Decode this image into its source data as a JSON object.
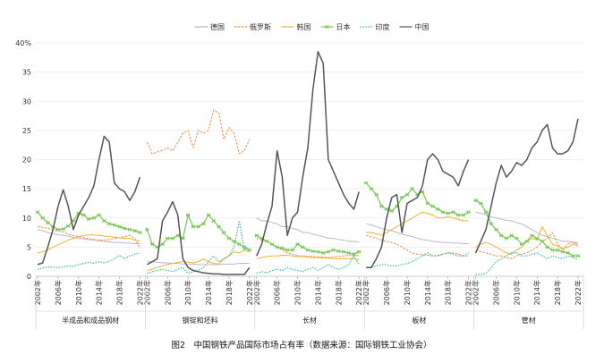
{
  "chart_data": {
    "type": "line",
    "caption": "图2　中国钢铁产品国际市场占有率（数据来源：国际钢铁工业协会）",
    "y_axis": {
      "min": 0,
      "max": 40,
      "ticks": [
        "0",
        "5",
        "10",
        "15",
        "20",
        "25",
        "30",
        "35",
        "40%"
      ]
    },
    "x_tick_labels": [
      "2002年",
      "2006年",
      "2010年",
      "2014年",
      "2018年",
      "2022年"
    ],
    "x_years": [
      2002,
      2003,
      2004,
      2005,
      2006,
      2007,
      2008,
      2009,
      2010,
      2011,
      2012,
      2013,
      2014,
      2015,
      2016,
      2017,
      2018,
      2019,
      2020,
      2021,
      2022
    ],
    "legend": [
      {
        "name": "德国",
        "color": "#b4aed6",
        "dash": "",
        "marker": ""
      },
      {
        "name": "俄罗斯",
        "color": "#f08a4b",
        "dash": "",
        "marker": ""
      },
      {
        "name": "韩国",
        "color": "#f2b229",
        "dash": "",
        "marker": ""
      },
      {
        "name": "日本",
        "color": "#78c653",
        "dash": "",
        "marker": "star"
      },
      {
        "name": "印度",
        "color": "#33c0a8",
        "dash": "",
        "marker": ""
      },
      {
        "name": "中国",
        "color": "#555555",
        "dash": "",
        "marker": ""
      }
    ],
    "panels": [
      {
        "category": "半成品和成品钢材",
        "series": [
          {
            "name": "德国",
            "values": [
              8,
              7.8,
              7.5,
              7.3,
              7.1,
              7,
              6.9,
              6.7,
              6.5,
              6.4,
              6.3,
              6.2,
              6.1,
              6,
              5.9,
              5.8,
              5.8,
              5.7,
              5.7,
              5.6,
              5.6
            ]
          },
          {
            "name": "俄罗斯",
            "values": [
              8.5,
              8.4,
              8.2,
              8,
              7.8,
              7.6,
              7.2,
              7,
              6.8,
              6.6,
              6.4,
              6.3,
              6.2,
              6.2,
              6.3,
              6.5,
              6.6,
              6.8,
              7,
              6.5,
              4.8
            ]
          },
          {
            "name": "韩国",
            "values": [
              4,
              4.2,
              4.5,
              5,
              5.4,
              5.8,
              6.2,
              6.5,
              6.8,
              7,
              7.1,
              7.1,
              7,
              6.9,
              6.8,
              6.7,
              6.6,
              6.5,
              6.5,
              6.2,
              6
            ]
          },
          {
            "name": "日本",
            "values": [
              11,
              10,
              9.2,
              8.5,
              8,
              8.1,
              8.6,
              9.5,
              10.8,
              10.5,
              9.8,
              10,
              10.5,
              9.5,
              9,
              8.8,
              8.5,
              8.2,
              8,
              7.8,
              7.5
            ]
          },
          {
            "name": "印度",
            "values": [
              1.2,
              1.4,
              1.6,
              1.6,
              1.5,
              1.6,
              1.8,
              1.7,
              2,
              2.2,
              2.4,
              2.2,
              2.5,
              2.3,
              2.6,
              3,
              3.6,
              3,
              3.5,
              3.8,
              4
            ]
          },
          {
            "name": "中国",
            "values": [
              2,
              2.3,
              5,
              8,
              12,
              14.8,
              12,
              8,
              10.5,
              12,
              13.5,
              15.5,
              20,
              24,
              23,
              16,
              15,
              14.5,
              13,
              14.5,
              17
            ]
          }
        ]
      },
      {
        "category": "钢锭和坯料",
        "series": [
          {
            "name": "德国",
            "values": [
              2.5,
              2.5,
              2.4,
              2.3,
              2.3,
              2.2,
              2.2,
              2.1,
              2.1,
              2.1,
              2,
              2,
              2,
              2,
              2,
              2.1,
              2.1,
              2.1,
              2.2,
              2.2,
              2.2
            ]
          },
          {
            "name": "俄罗斯",
            "values": [
              23,
              21,
              21.3,
              21.6,
              22,
              21.5,
              23,
              24.5,
              25,
              22,
              25,
              24.5,
              25,
              28.5,
              28,
              23.5,
              25.5,
              24.5,
              21,
              21.5,
              23.5
            ]
          },
          {
            "name": "韩国",
            "values": [
              1,
              1.2,
              1.5,
              1.8,
              2,
              2.2,
              2.4,
              2.5,
              2.4,
              2.3,
              2.5,
              3,
              2.5,
              2.2,
              2.1,
              3,
              3.5,
              4.2,
              4,
              4.5,
              4.2
            ]
          },
          {
            "name": "日本",
            "values": [
              8,
              5.5,
              5,
              5.5,
              6.5,
              6.5,
              7,
              6.5,
              10.5,
              8.5,
              8.5,
              9,
              10.5,
              9.5,
              8.5,
              7.5,
              6.5,
              6,
              5.5,
              5,
              4.5
            ]
          },
          {
            "name": "印度",
            "values": [
              0.5,
              0.8,
              1,
              1.2,
              1,
              0.8,
              1.2,
              1.5,
              0.5,
              0.8,
              1,
              1.5,
              2.5,
              3.5,
              2.5,
              3,
              3.5,
              5,
              9.5,
              4.5,
              5
            ]
          },
          {
            "name": "中国",
            "values": [
              2,
              2.5,
              3,
              9.5,
              11,
              12.8,
              10.5,
              3,
              1.5,
              1,
              0.8,
              0.6,
              0.5,
              0.4,
              0.4,
              0.3,
              0.3,
              0.3,
              0.3,
              0.3,
              1.5
            ]
          }
        ]
      },
      {
        "category": "长材",
        "series": [
          {
            "name": "德国",
            "values": [
              10,
              9.5,
              9.5,
              9.2,
              9,
              8.5,
              8.5,
              8.2,
              8,
              7.5,
              7.5,
              7.2,
              7,
              6.8,
              6.5,
              6.5,
              6.3,
              6.2,
              6,
              6,
              5.8
            ]
          },
          {
            "name": "俄罗斯",
            "values": [
              6.5,
              6.2,
              6,
              5.5,
              5,
              4.5,
              4,
              3.8,
              3.5,
              3.5,
              3.4,
              3.4,
              3.3,
              3.3,
              3.2,
              3.3,
              3.4,
              3.5,
              3.6,
              3.5,
              3.6
            ]
          },
          {
            "name": "韩国",
            "values": [
              3,
              3.2,
              3.4,
              3.5,
              3.5,
              3.6,
              3.6,
              3.5,
              3.4,
              3.4,
              3.3,
              3.2,
              3.2,
              3.1,
              3.1,
              3,
              3,
              3,
              3,
              3,
              2.8
            ]
          },
          {
            "name": "日本",
            "values": [
              7,
              6.5,
              6,
              5.5,
              5,
              4.8,
              4.5,
              4.5,
              5.5,
              5,
              4.5,
              4.3,
              4.2,
              4,
              4.2,
              4.5,
              4.3,
              4.2,
              4,
              3.8,
              4.2
            ]
          },
          {
            "name": "印度",
            "values": [
              0.5,
              0.8,
              0.6,
              1,
              1.2,
              1,
              1.5,
              1.2,
              1,
              0.8,
              1.2,
              1.5,
              1,
              1.5,
              2,
              1.5,
              1.2,
              1.5,
              2,
              3.5,
              2
            ]
          },
          {
            "name": "中国",
            "values": [
              3.5,
              5.5,
              9,
              12,
              21.5,
              17,
              7,
              10,
              11,
              17,
              22,
              32,
              38.5,
              36.5,
              20,
              18,
              16,
              14,
              12.5,
              11.5,
              14.5
            ]
          }
        ]
      },
      {
        "category": "板材",
        "series": [
          {
            "name": "德国",
            "values": [
              9,
              8.8,
              8.5,
              8.2,
              8,
              7.8,
              7.5,
              7.2,
              7,
              6.8,
              6.5,
              6.3,
              6.2,
              6,
              5.9,
              5.8,
              5.8,
              5.7,
              5.7,
              5.6,
              5.6
            ]
          },
          {
            "name": "俄罗斯",
            "values": [
              7,
              6.8,
              6.5,
              6.2,
              6,
              5.8,
              5.5,
              5,
              4.5,
              4,
              3.8,
              3.7,
              3.6,
              3.5,
              3.6,
              3.8,
              4,
              4,
              3.8,
              3.5,
              3.5
            ]
          },
          {
            "name": "韩国",
            "values": [
              7.5,
              7.5,
              7.3,
              7,
              7.5,
              8,
              8.5,
              9,
              9.5,
              10,
              10.5,
              11,
              10.8,
              10.5,
              10,
              10,
              10.2,
              10,
              9.8,
              9.5,
              9.5
            ]
          },
          {
            "name": "日本",
            "values": [
              16,
              15,
              14,
              12,
              11.5,
              11.2,
              12,
              13.5,
              14,
              15,
              14,
              14.5,
              12.5,
              12,
              11.5,
              11,
              10.8,
              11,
              10.5,
              10.5,
              11
            ]
          },
          {
            "name": "印度",
            "values": [
              1.5,
              1.5,
              1.8,
              2,
              2,
              1.8,
              1.8,
              2,
              2.2,
              2.5,
              3,
              3.5,
              4,
              3.5,
              3.5,
              3.8,
              4,
              3.8,
              3.5,
              3.5,
              4
            ]
          },
          {
            "name": "中国",
            "values": [
              1.5,
              1.5,
              3,
              5,
              10,
              13.5,
              14,
              7.5,
              12.5,
              13,
              13.5,
              15.5,
              20,
              21,
              20,
              18,
              17.5,
              17,
              15.5,
              18,
              20
            ]
          }
        ]
      },
      {
        "category": "管材",
        "series": [
          {
            "name": "德国",
            "values": [
              11,
              10.8,
              10.5,
              10.2,
              10,
              9.8,
              9.6,
              9.5,
              9.2,
              9,
              8.5,
              8,
              7.5,
              7,
              6.8,
              6.5,
              6.3,
              6,
              6,
              5.8,
              5.8
            ]
          },
          {
            "name": "俄罗斯",
            "values": [
              4.5,
              4.2,
              4,
              3.8,
              3.5,
              3.5,
              3.2,
              3,
              3.5,
              3.8,
              4,
              4.5,
              5,
              6,
              6.5,
              7.5,
              5.5,
              4.5,
              5.5,
              6,
              5
            ]
          },
          {
            "name": "韩国",
            "values": [
              5,
              5.5,
              5.8,
              5.5,
              5,
              4.5,
              4,
              3.8,
              4.5,
              5,
              6,
              6.5,
              6.2,
              8.5,
              7,
              5.5,
              5.2,
              4.8,
              5,
              5.5,
              5.5
            ]
          },
          {
            "name": "日本",
            "values": [
              13,
              12.5,
              11,
              9,
              8,
              7,
              6.5,
              7,
              6.5,
              5.5,
              6,
              7,
              6.5,
              6,
              5,
              4.5,
              4.5,
              4.2,
              4,
              3.5,
              3.5
            ]
          },
          {
            "name": "印度",
            "values": [
              0.3,
              0.3,
              0.5,
              1.5,
              2.5,
              3,
              3.5,
              4,
              4,
              3.5,
              3.5,
              3.8,
              4,
              3.5,
              3,
              3.5,
              3.2,
              3,
              3.5,
              3.2,
              2.8
            ]
          },
          {
            "name": "中国",
            "values": [
              4,
              6,
              8,
              12,
              16,
              19,
              17,
              18,
              19.5,
              19,
              20,
              22,
              23,
              25,
              26,
              22,
              21,
              21,
              21.5,
              23,
              27
            ]
          }
        ]
      }
    ]
  }
}
